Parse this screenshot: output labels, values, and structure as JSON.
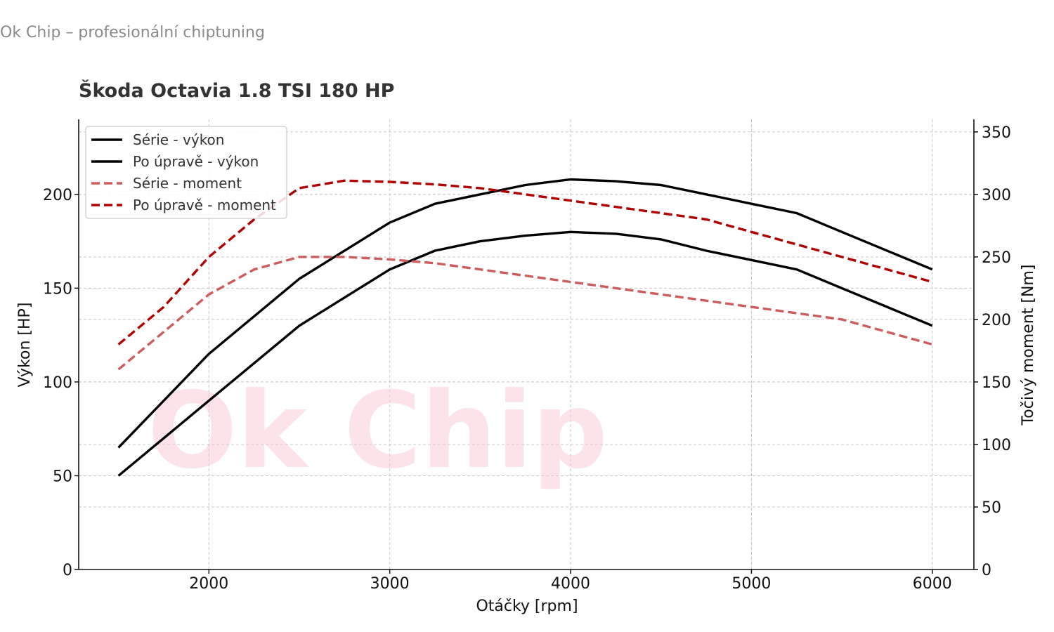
{
  "header": {
    "text": "Ok Chip – profesionální chiptuning"
  },
  "watermark": {
    "text": "Ok Chip"
  },
  "colors": {
    "stock_power": "#000000",
    "tuned_power": "#000000",
    "stock_torque": "#cd5c5c",
    "tuned_torque": "#b00000",
    "grid": "#c8c8c8"
  },
  "chart_data": {
    "type": "line",
    "title": "Škoda Octavia 1.8 TSI 180 HP",
    "xlabel": "Otáčky [rpm]",
    "ylabel": "Výkon [HP]",
    "y2label": "Točivý moment [Nm]",
    "xlim": [
      1280,
      6230
    ],
    "ylim": [
      0,
      240
    ],
    "y2lim": [
      0,
      360
    ],
    "xticks": [
      2000,
      3000,
      4000,
      5000,
      6000
    ],
    "yticks": [
      0,
      50,
      100,
      150,
      200
    ],
    "y2ticks": [
      0,
      50,
      100,
      150,
      200,
      250,
      300,
      350
    ],
    "grid": true,
    "legend_position": "top-left",
    "series": [
      {
        "name": "Série - výkon",
        "axis": "left",
        "style": "solid",
        "color": "#000000",
        "x": [
          1500,
          2000,
          2500,
          3000,
          3250,
          3500,
          3750,
          4000,
          4250,
          4500,
          4750,
          5000,
          5250,
          5500,
          6000
        ],
        "values": [
          50,
          90,
          130,
          160,
          170,
          175,
          178,
          180,
          179,
          176,
          170,
          165,
          160,
          150,
          130
        ]
      },
      {
        "name": "Po úpravě - výkon",
        "axis": "left",
        "style": "solid",
        "color": "#000000",
        "x": [
          1500,
          2000,
          2500,
          3000,
          3250,
          3500,
          3750,
          4000,
          4250,
          4500,
          4750,
          5000,
          5250,
          5500,
          6000
        ],
        "values": [
          65,
          115,
          155,
          185,
          195,
          200,
          205,
          208,
          207,
          205,
          200,
          195,
          190,
          180,
          160
        ]
      },
      {
        "name": "Série - moment",
        "axis": "right",
        "style": "dashed",
        "color": "#cd5c5c",
        "x": [
          1500,
          2000,
          2250,
          2500,
          2750,
          3000,
          3250,
          3500,
          4000,
          4500,
          5000,
          5500,
          6000
        ],
        "values": [
          160,
          220,
          240,
          250,
          250,
          248,
          245,
          240,
          230,
          220,
          210,
          200,
          180
        ]
      },
      {
        "name": "Po úpravě - moment",
        "axis": "right",
        "style": "dashed",
        "color": "#b00000",
        "x": [
          1500,
          1750,
          2000,
          2250,
          2500,
          2750,
          3000,
          3250,
          3500,
          3750,
          4000,
          4250,
          4500,
          4750,
          5000,
          5250,
          5500,
          6000
        ],
        "values": [
          180,
          210,
          250,
          280,
          305,
          311,
          310,
          308,
          305,
          300,
          295,
          290,
          285,
          280,
          270,
          260,
          250,
          230
        ]
      }
    ]
  }
}
